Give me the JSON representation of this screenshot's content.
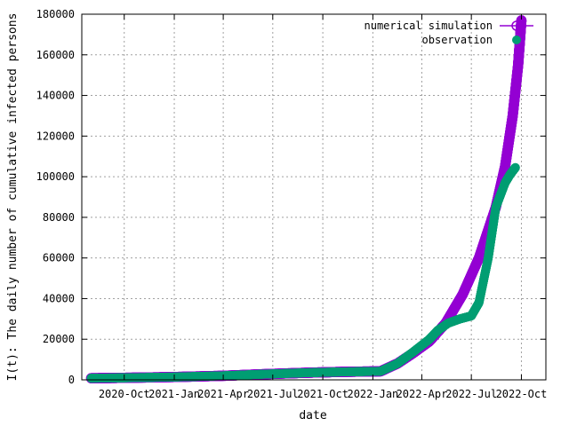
{
  "chart_data": {
    "type": "scatter",
    "ylabel": "I(t): The daily number of cumulative infected persons",
    "xlabel": "date",
    "ylim": [
      0,
      180000
    ],
    "yticks": [
      0,
      20000,
      40000,
      60000,
      80000,
      100000,
      120000,
      140000,
      160000,
      180000
    ],
    "xlim": [
      "2020-07-15",
      "2022-11-15"
    ],
    "xticks": [
      {
        "date": "2020-10-01",
        "label": "2020-Oct"
      },
      {
        "date": "2021-01-01",
        "label": "2021-Jan"
      },
      {
        "date": "2021-04-01",
        "label": "2021-Apr"
      },
      {
        "date": "2021-07-01",
        "label": "2021-Jul"
      },
      {
        "date": "2021-10-01",
        "label": "2021-Oct"
      },
      {
        "date": "2022-01-01",
        "label": "2022-Jan"
      },
      {
        "date": "2022-04-01",
        "label": "2022-Apr"
      },
      {
        "date": "2022-07-01",
        "label": "2022-Jul"
      },
      {
        "date": "2022-10-01",
        "label": "2022-Oct"
      }
    ],
    "grid": true,
    "legend_position": "top-right",
    "series": [
      {
        "name": "numerical simulation",
        "marker": "open-circle",
        "color": "#9400d3",
        "points": [
          [
            "2020-08-01",
            800
          ],
          [
            "2020-10-01",
            1000
          ],
          [
            "2021-01-01",
            1400
          ],
          [
            "2021-04-01",
            2000
          ],
          [
            "2021-06-15",
            2800
          ],
          [
            "2021-09-01",
            3500
          ],
          [
            "2021-11-01",
            3900
          ],
          [
            "2022-01-15",
            4200
          ],
          [
            "2022-02-15",
            8000
          ],
          [
            "2022-03-15",
            13000
          ],
          [
            "2022-04-15",
            19000
          ],
          [
            "2022-05-15",
            28000
          ],
          [
            "2022-06-15",
            42000
          ],
          [
            "2022-07-15",
            60000
          ],
          [
            "2022-08-15",
            85000
          ],
          [
            "2022-09-01",
            105000
          ],
          [
            "2022-09-15",
            130000
          ],
          [
            "2022-09-25",
            155000
          ],
          [
            "2022-10-01",
            177000
          ]
        ]
      },
      {
        "name": "observation",
        "marker": "filled-circle",
        "color": "#009e73",
        "points": [
          [
            "2020-08-01",
            800
          ],
          [
            "2020-10-01",
            1000
          ],
          [
            "2021-01-01",
            1400
          ],
          [
            "2021-04-01",
            2000
          ],
          [
            "2021-06-15",
            2800
          ],
          [
            "2021-09-01",
            3500
          ],
          [
            "2021-11-01",
            3900
          ],
          [
            "2022-01-15",
            4200
          ],
          [
            "2022-02-15",
            8000
          ],
          [
            "2022-03-15",
            13500
          ],
          [
            "2022-04-15",
            20000
          ],
          [
            "2022-05-01",
            24500
          ],
          [
            "2022-05-20",
            28000
          ],
          [
            "2022-06-10",
            30000
          ],
          [
            "2022-07-01",
            31500
          ],
          [
            "2022-07-15",
            38000
          ],
          [
            "2022-08-01",
            60000
          ],
          [
            "2022-08-15",
            85000
          ],
          [
            "2022-09-01",
            97000
          ],
          [
            "2022-09-10",
            101000
          ],
          [
            "2022-09-20",
            104500
          ]
        ]
      }
    ]
  }
}
